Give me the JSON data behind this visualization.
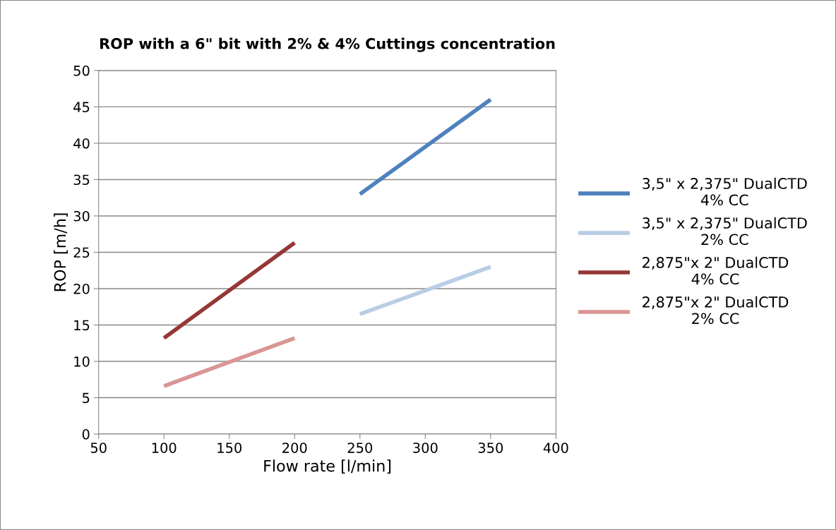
{
  "chart_data": {
    "type": "line",
    "title": "ROP with a 6\" bit with 2% & 4% Cuttings concentration",
    "xlabel": "Flow rate [l/min]",
    "ylabel": "ROP [m/h]",
    "xlim": [
      50,
      400
    ],
    "xticks": [
      50,
      100,
      150,
      200,
      250,
      300,
      350,
      400
    ],
    "ylim": [
      0,
      50
    ],
    "yticks": [
      0,
      5,
      10,
      15,
      20,
      25,
      30,
      35,
      40,
      45,
      50
    ],
    "grid": "y",
    "legend": "right",
    "marker": "none",
    "line_style": "solid",
    "series": [
      {
        "name": "3,5\" x 2,375\" DualCTD\n4% CC",
        "color": "#4f81bd",
        "x": [
          250,
          350
        ],
        "values": [
          33,
          46
        ]
      },
      {
        "name": "3,5\" x 2,375\" DualCTD\n2% CC",
        "color": "#b9cde5",
        "x": [
          250,
          350
        ],
        "values": [
          16.5,
          23
        ]
      },
      {
        "name": "2,875\"x 2\" DualCTD\n4% CC",
        "color": "#953735",
        "x": [
          100,
          200
        ],
        "values": [
          13.2,
          26.3
        ]
      },
      {
        "name": "2,875\"x 2\" DualCTD\n2% CC",
        "color": "#d99694",
        "x": [
          100,
          200
        ],
        "values": [
          6.6,
          13.2
        ]
      }
    ]
  }
}
